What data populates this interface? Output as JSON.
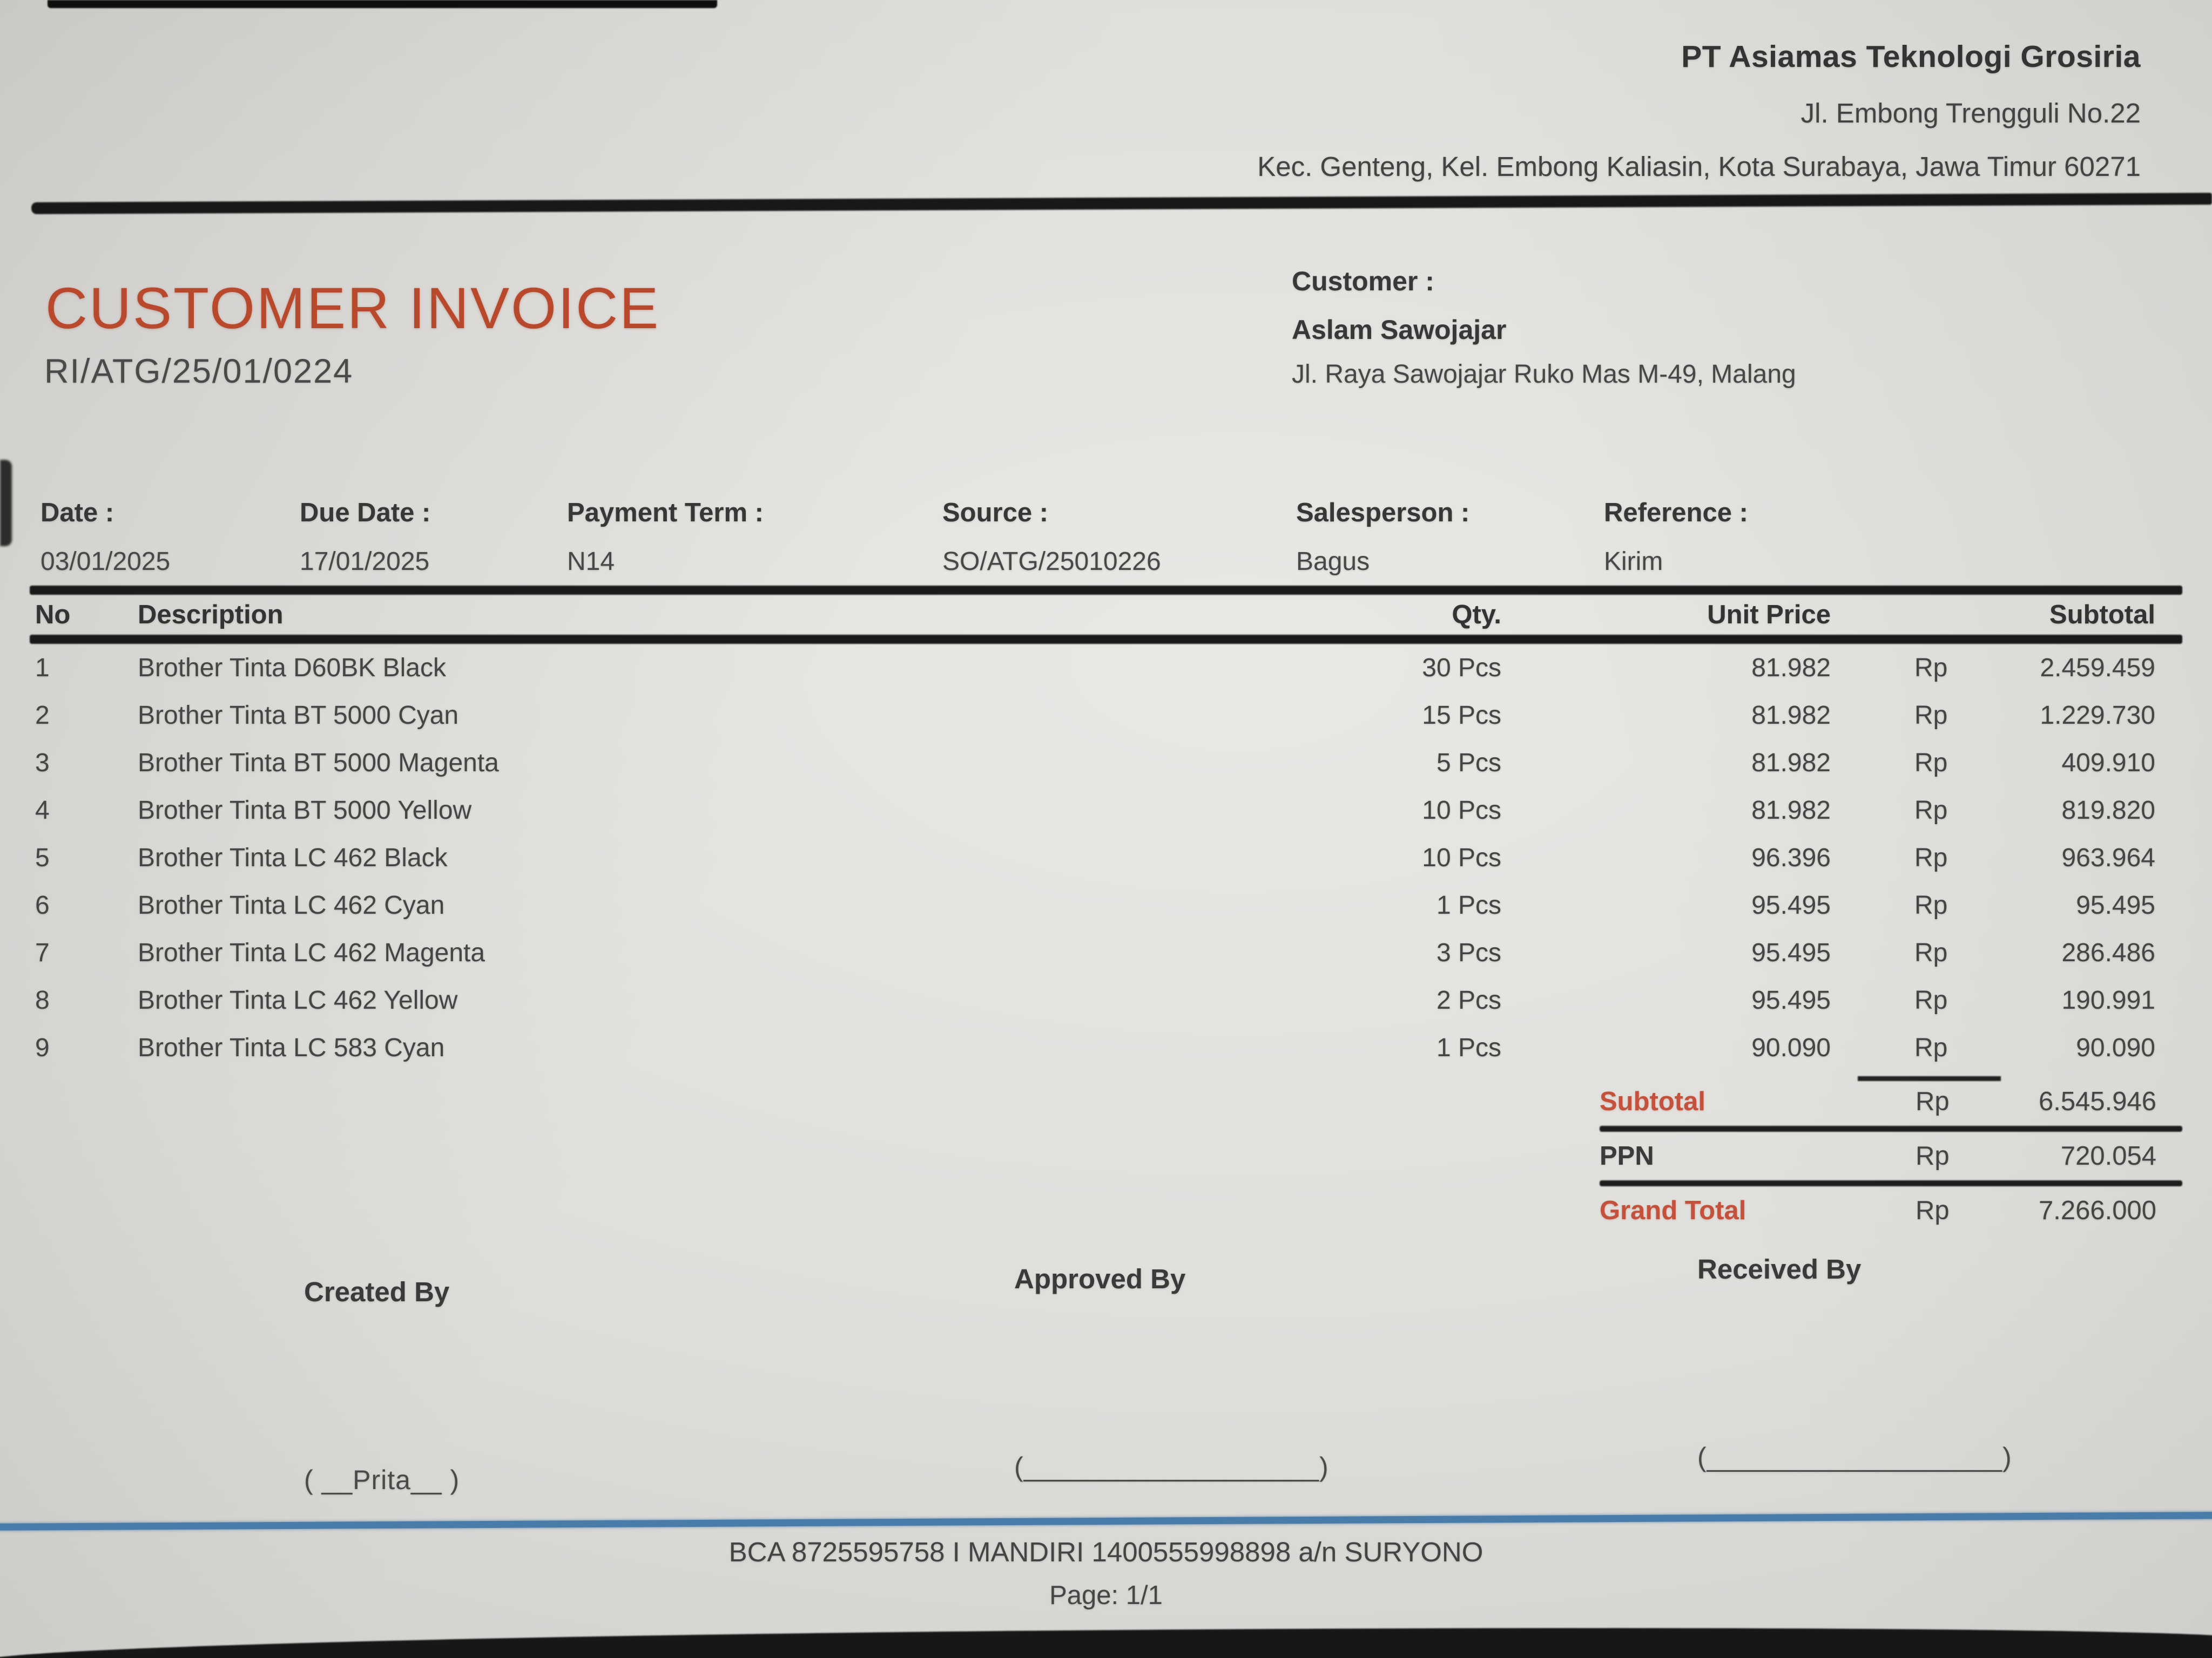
{
  "header": {
    "company": "PT Asiamas Teknologi Grosiria",
    "address_line1": "Jl. Embong Trengguli No.22",
    "address_line2": "Kec. Genteng, Kel. Embong Kaliasin, Kota Surabaya, Jawa Timur 60271"
  },
  "invoice": {
    "title": "CUSTOMER INVOICE",
    "number": "RI/ATG/25/01/0224"
  },
  "customer": {
    "label": "Customer :",
    "name": "Aslam Sawojajar",
    "address": "Jl. Raya Sawojajar Ruko Mas M-49, Malang"
  },
  "meta": {
    "fields": [
      {
        "label": "Date :",
        "value": "03/01/2025"
      },
      {
        "label": "Due Date :",
        "value": "17/01/2025"
      },
      {
        "label": "Payment Term :",
        "value": "N14"
      },
      {
        "label": "Source :",
        "value": "SO/ATG/25010226"
      },
      {
        "label": "Salesperson :",
        "value": "Bagus"
      },
      {
        "label": "Reference :",
        "value": "Kirim"
      }
    ]
  },
  "table": {
    "headers": {
      "no": "No",
      "description": "Description",
      "qty": "Qty.",
      "unit_price": "Unit Price",
      "subtotal": "Subtotal"
    },
    "rows": [
      {
        "no": "1",
        "description": "Brother Tinta D60BK Black",
        "qty": "30 Pcs",
        "unit_price": "81.982",
        "currency": "Rp",
        "subtotal": "2.459.459"
      },
      {
        "no": "2",
        "description": "Brother Tinta BT 5000 Cyan",
        "qty": "15 Pcs",
        "unit_price": "81.982",
        "currency": "Rp",
        "subtotal": "1.229.730"
      },
      {
        "no": "3",
        "description": "Brother Tinta BT 5000 Magenta",
        "qty": "5 Pcs",
        "unit_price": "81.982",
        "currency": "Rp",
        "subtotal": "409.910"
      },
      {
        "no": "4",
        "description": "Brother Tinta BT 5000 Yellow",
        "qty": "10 Pcs",
        "unit_price": "81.982",
        "currency": "Rp",
        "subtotal": "819.820"
      },
      {
        "no": "5",
        "description": "Brother Tinta LC 462 Black",
        "qty": "10 Pcs",
        "unit_price": "96.396",
        "currency": "Rp",
        "subtotal": "963.964"
      },
      {
        "no": "6",
        "description": "Brother Tinta LC 462 Cyan",
        "qty": "1 Pcs",
        "unit_price": "95.495",
        "currency": "Rp",
        "subtotal": "95.495"
      },
      {
        "no": "7",
        "description": "Brother Tinta LC 462 Magenta",
        "qty": "3 Pcs",
        "unit_price": "95.495",
        "currency": "Rp",
        "subtotal": "286.486"
      },
      {
        "no": "8",
        "description": "Brother Tinta LC 462 Yellow",
        "qty": "2 Pcs",
        "unit_price": "95.495",
        "currency": "Rp",
        "subtotal": "190.991"
      },
      {
        "no": "9",
        "description": "Brother Tinta LC 583 Cyan",
        "qty": "1 Pcs",
        "unit_price": "90.090",
        "currency": "Rp",
        "subtotal": "90.090"
      }
    ]
  },
  "totals": {
    "rows": [
      {
        "label": "Subtotal",
        "currency": "Rp",
        "value": "6.545.946"
      },
      {
        "label": "PPN",
        "currency": "Rp",
        "value": "720.054"
      },
      {
        "label": "Grand Total",
        "currency": "Rp",
        "value": "7.266.000"
      }
    ]
  },
  "signatures": {
    "columns": [
      {
        "title": "Created By",
        "line": "( __Prita__ )"
      },
      {
        "title": "Approved By",
        "line": "(___________________)"
      },
      {
        "title": "Received By",
        "line": "(___________________)"
      }
    ]
  },
  "footer": {
    "bank_info": "BCA 8725595758 I MANDIRI 1400555998898 a/n SURYONO",
    "page": "Page: 1/1"
  },
  "colors": {
    "accent_title": "#b8492c",
    "accent_totals": "#c3513b",
    "divider_blue": "#4a7ca9",
    "ink": "#3f3f3f"
  }
}
